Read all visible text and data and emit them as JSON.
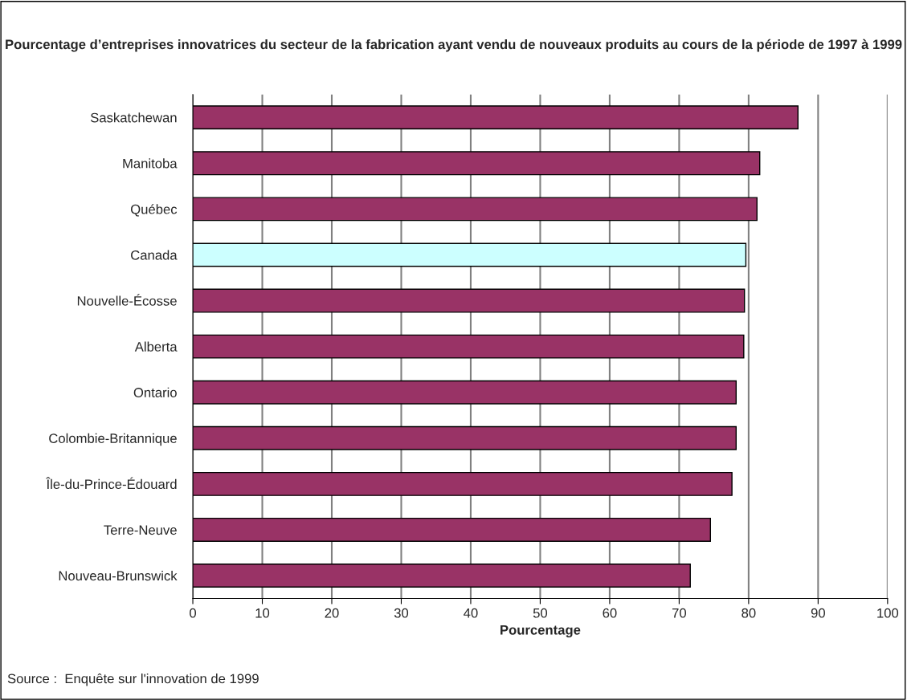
{
  "chart_data": {
    "type": "bar",
    "orientation": "horizontal",
    "title": "Pourcentage d’entreprises innovatrices du secteur de la fabrication ayant vendu de nouveaux produits au cours de la période de 1997 à 1999",
    "xlabel": "Pourcentage",
    "categories": [
      "Saskatchewan",
      "Manitoba",
      "Québec",
      "Canada",
      "Nouvelle-Écosse",
      "Alberta",
      "Ontario",
      "Colombie-Britannique",
      "Île-du-Prince-Édouard",
      "Terre-Neuve",
      "Nouveau-Brunswick"
    ],
    "values": [
      87.1,
      81.6,
      81.2,
      79.6,
      79.4,
      79.3,
      78.2,
      78.2,
      77.6,
      74.5,
      71.6
    ],
    "colors": [
      "#993366",
      "#993366",
      "#993366",
      "#ccffff",
      "#993366",
      "#993366",
      "#993366",
      "#993366",
      "#993366",
      "#993366",
      "#993366"
    ],
    "xlim": [
      0,
      100
    ],
    "xticks": [
      0,
      10,
      20,
      30,
      40,
      50,
      60,
      70,
      80,
      90,
      100
    ],
    "grid": "x",
    "legend": false,
    "annotations": [
      "Source :  Enquête sur l'innovation de 1999"
    ]
  }
}
